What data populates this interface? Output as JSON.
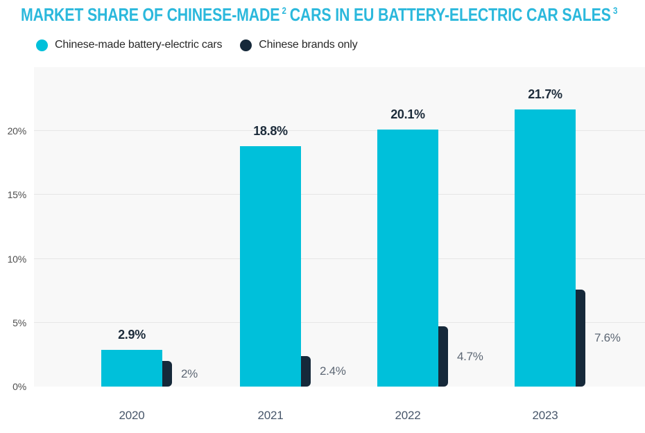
{
  "title": {
    "part1": "MARKET SHARE OF CHINESE-MADE",
    "sup1": "2",
    "part2": "CARS IN EU BATTERY-ELECTRIC CAR SALES",
    "sup2": "3",
    "color": "#2BB8DC"
  },
  "legend": {
    "items": [
      {
        "label": "Chinese-made battery-electric cars",
        "color": "#00C0DA"
      },
      {
        "label": "Chinese brands only",
        "color": "#16293A"
      }
    ]
  },
  "chart_data": {
    "type": "bar",
    "title": "MARKET SHARE OF CHINESE-MADE CARS IN EU BATTERY-ELECTRIC CAR SALES",
    "categories": [
      "2020",
      "2021",
      "2022",
      "2023"
    ],
    "series": [
      {
        "name": "Chinese-made battery-electric cars",
        "color": "#00C0DA",
        "values": [
          2.9,
          18.8,
          20.1,
          21.7
        ],
        "value_labels": [
          "2.9%",
          "18.8%",
          "20.1%",
          "21.7%"
        ],
        "label_color": "#1C2B3A"
      },
      {
        "name": "Chinese brands only",
        "color": "#16293A",
        "values": [
          2.0,
          2.4,
          4.7,
          7.6
        ],
        "value_labels": [
          "2%",
          "2.4%",
          "4.7%",
          "7.6%"
        ],
        "label_color": "#5D6774"
      }
    ],
    "xlabel": "",
    "ylabel": "",
    "ylim": [
      0,
      25
    ],
    "yticks": [
      0,
      5,
      10,
      15,
      20
    ],
    "ytick_labels": [
      "0%",
      "5%",
      "10%",
      "15%",
      "20%"
    ],
    "grid": true,
    "legend_position": "top-left",
    "plot_bg": "#F8F8F8",
    "gridline_color": "#E6E6E6",
    "axis_label_color": "#4E4E4E",
    "category_label_color": "#47566A"
  }
}
